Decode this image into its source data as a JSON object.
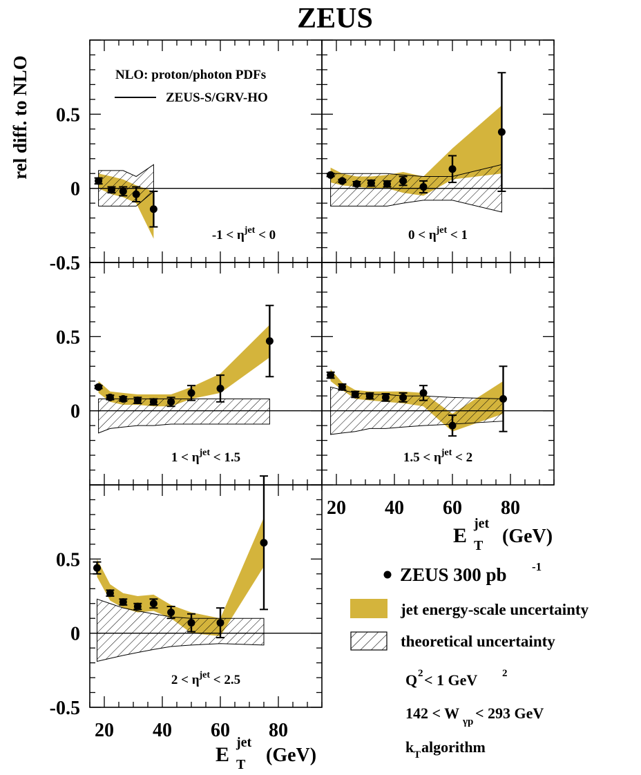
{
  "title": "ZEUS",
  "ylabel": "rel diff. to NLO",
  "xlabel": "E_T^jet (GeV)",
  "xlabel_main": "E",
  "xlabel_sub": "T",
  "xlabel_sup": "jet",
  "xlabel_unit": "(GeV)",
  "nlo_legend": {
    "heading": "NLO: proton/photon PDFs",
    "line_label": "ZEUS-S/GRV-HO"
  },
  "legend": {
    "data_label": "ZEUS 300 pb",
    "data_sup": "-1",
    "jes_label": "jet energy-scale uncertainty",
    "theory_label": "theoretical uncertainty"
  },
  "conditions": {
    "q2_a": "Q",
    "q2_sup": "2",
    "q2_b": " < 1 GeV",
    "q2_sup2": "2",
    "w_a": "142 < W",
    "w_sub": "γp",
    "w_b": " < 293 GeV",
    "kt_a": "k",
    "kt_sub": "T",
    "kt_b": " algorithm"
  },
  "colors": {
    "jes_band": "#d4b43c",
    "markers": "#000000",
    "hatch": "#000000"
  },
  "chart_data": [
    {
      "type": "scatter",
      "panel_label": {
        "pre": "-1 < η",
        "sup": "jet",
        "post": " < 0"
      },
      "xlim": [
        15,
        95
      ],
      "ylim": [
        -0.5,
        1.0
      ],
      "yticks": [
        "0.5",
        "0",
        "-0.5"
      ],
      "xticks": [],
      "data": {
        "x": [
          18,
          22.5,
          26.5,
          31,
          37
        ],
        "y": [
          0.05,
          -0.01,
          -0.02,
          -0.04,
          -0.14
        ],
        "err": [
          0.02,
          0.02,
          0.03,
          0.05,
          0.12
        ]
      },
      "jes_band": {
        "x": [
          18,
          22.5,
          26.5,
          31,
          37
        ],
        "lo": [
          0.0,
          -0.04,
          -0.06,
          -0.1,
          -0.34
        ],
        "hi": [
          0.1,
          0.08,
          0.06,
          0.02,
          -0.02
        ]
      },
      "theory_band": {
        "x": [
          18,
          22.5,
          26.5,
          31,
          37
        ],
        "lo": [
          -0.12,
          -0.12,
          -0.12,
          -0.12,
          -0.02
        ],
        "hi": [
          0.12,
          0.12,
          0.12,
          0.08,
          0.16
        ]
      },
      "nlo_line": 0
    },
    {
      "type": "scatter",
      "panel_label": {
        "pre": "0 < η",
        "sup": "jet",
        "post": " < 1"
      },
      "xlim": [
        15,
        95
      ],
      "ylim": [
        -0.5,
        1.0
      ],
      "yticks": [],
      "xticks": [],
      "data": {
        "x": [
          18,
          22,
          27,
          32,
          37.5,
          43,
          50,
          60,
          77
        ],
        "y": [
          0.09,
          0.05,
          0.03,
          0.035,
          0.03,
          0.05,
          0.01,
          0.13,
          0.38
        ],
        "err": [
          0.01,
          0.01,
          0.015,
          0.02,
          0.02,
          0.03,
          0.04,
          0.09,
          0.4
        ]
      },
      "jes_band": {
        "x": [
          18,
          22,
          27,
          32,
          37.5,
          43,
          50,
          60,
          77
        ],
        "lo": [
          0.04,
          0.02,
          0.01,
          0.0,
          0.0,
          -0.03,
          -0.05,
          0.06,
          0.1
        ],
        "hi": [
          0.14,
          0.1,
          0.08,
          0.08,
          0.09,
          0.11,
          0.08,
          0.27,
          0.56
        ]
      },
      "theory_band": {
        "x": [
          18,
          22,
          27,
          32,
          37.5,
          43,
          50,
          60,
          77
        ],
        "lo": [
          -0.12,
          -0.12,
          -0.12,
          -0.12,
          -0.12,
          -0.1,
          -0.08,
          -0.08,
          -0.16
        ],
        "hi": [
          0.1,
          0.1,
          0.1,
          0.1,
          0.1,
          0.09,
          0.08,
          0.08,
          0.16
        ]
      },
      "nlo_line": 0
    },
    {
      "type": "scatter",
      "panel_label": {
        "pre": "1 < η",
        "sup": "jet",
        "post": " < 1.5"
      },
      "xlim": [
        15,
        95
      ],
      "ylim": [
        -0.5,
        1.0
      ],
      "yticks": [
        "0.5",
        "0"
      ],
      "xticks": [],
      "data": {
        "x": [
          18,
          22,
          26.5,
          31.5,
          37,
          43,
          50,
          60,
          77
        ],
        "y": [
          0.16,
          0.09,
          0.08,
          0.07,
          0.06,
          0.06,
          0.12,
          0.15,
          0.47
        ],
        "err": [
          0.01,
          0.015,
          0.015,
          0.02,
          0.02,
          0.03,
          0.05,
          0.09,
          0.24
        ]
      },
      "jes_band": {
        "x": [
          18,
          22,
          26.5,
          31.5,
          37,
          43,
          50,
          60,
          77
        ],
        "lo": [
          0.12,
          0.06,
          0.04,
          0.04,
          0.03,
          0.03,
          0.08,
          0.12,
          0.36
        ],
        "hi": [
          0.2,
          0.13,
          0.12,
          0.11,
          0.11,
          0.11,
          0.16,
          0.25,
          0.58
        ]
      },
      "theory_band": {
        "x": [
          18,
          22,
          26.5,
          31.5,
          37,
          43,
          50,
          60,
          77
        ],
        "lo": [
          -0.15,
          -0.12,
          -0.11,
          -0.1,
          -0.1,
          -0.09,
          -0.09,
          -0.09,
          -0.09
        ],
        "hi": [
          0.08,
          0.08,
          0.08,
          0.08,
          0.08,
          0.08,
          0.08,
          0.08,
          0.08
        ]
      },
      "nlo_line": 0
    },
    {
      "type": "scatter",
      "panel_label": {
        "pre": "1.5 < η",
        "sup": "jet",
        "post": " < 2"
      },
      "xlim": [
        15,
        95
      ],
      "ylim": [
        -0.5,
        1.0
      ],
      "yticks": [],
      "xticks": [
        "20",
        "40",
        "60",
        "80"
      ],
      "data": {
        "x": [
          18,
          22,
          26.5,
          31.5,
          37,
          43,
          50,
          60,
          77.5
        ],
        "y": [
          0.24,
          0.16,
          0.11,
          0.1,
          0.09,
          0.09,
          0.12,
          -0.1,
          0.08
        ],
        "err": [
          0.02,
          0.02,
          0.02,
          0.02,
          0.025,
          0.03,
          0.05,
          0.07,
          0.22
        ]
      },
      "jes_band": {
        "x": [
          18,
          22,
          26.5,
          31.5,
          37,
          43,
          50,
          60,
          77.5
        ],
        "lo": [
          0.2,
          0.14,
          0.08,
          0.07,
          0.06,
          0.05,
          0.03,
          -0.14,
          -0.02
        ],
        "hi": [
          0.28,
          0.19,
          0.14,
          0.13,
          0.13,
          0.13,
          0.12,
          -0.02,
          0.2
        ]
      },
      "theory_band": {
        "x": [
          18,
          22,
          26.5,
          31.5,
          37,
          43,
          50,
          60,
          77.5
        ],
        "lo": [
          -0.16,
          -0.15,
          -0.14,
          -0.12,
          -0.12,
          -0.11,
          -0.1,
          -0.09,
          -0.07
        ],
        "hi": [
          0.16,
          0.14,
          0.12,
          0.11,
          0.11,
          0.1,
          0.1,
          0.09,
          0.08
        ]
      },
      "nlo_line": 0
    },
    {
      "type": "scatter",
      "panel_label": {
        "pre": "2 < η",
        "sup": "jet",
        "post": " < 2.5"
      },
      "xlim": [
        15,
        95
      ],
      "ylim": [
        -0.5,
        1.0
      ],
      "yticks": [
        "0.5",
        "0",
        "-0.5"
      ],
      "xticks": [
        "20",
        "40",
        "60",
        "80"
      ],
      "data": {
        "x": [
          17.5,
          22,
          26.5,
          31.5,
          37,
          43,
          50,
          60,
          75
        ],
        "y": [
          0.44,
          0.27,
          0.21,
          0.18,
          0.2,
          0.14,
          0.07,
          0.07,
          0.61
        ],
        "err": [
          0.04,
          0.02,
          0.02,
          0.02,
          0.03,
          0.04,
          0.06,
          0.1,
          0.45
        ]
      },
      "jes_band": {
        "x": [
          17.5,
          22,
          26.5,
          31.5,
          37,
          43,
          50,
          60,
          75
        ],
        "lo": [
          0.38,
          0.22,
          0.17,
          0.14,
          0.15,
          0.1,
          0.0,
          -0.02,
          0.45
        ],
        "hi": [
          0.5,
          0.33,
          0.27,
          0.25,
          0.26,
          0.19,
          0.14,
          0.1,
          0.78
        ]
      },
      "theory_band": {
        "x": [
          17.5,
          22,
          26.5,
          31.5,
          37,
          43,
          50,
          60,
          75
        ],
        "lo": [
          -0.19,
          -0.17,
          -0.15,
          -0.13,
          -0.11,
          -0.09,
          -0.08,
          -0.07,
          -0.08
        ],
        "hi": [
          0.23,
          0.2,
          0.17,
          0.15,
          0.13,
          0.11,
          0.1,
          0.1,
          0.1
        ]
      },
      "nlo_line": 0
    }
  ]
}
